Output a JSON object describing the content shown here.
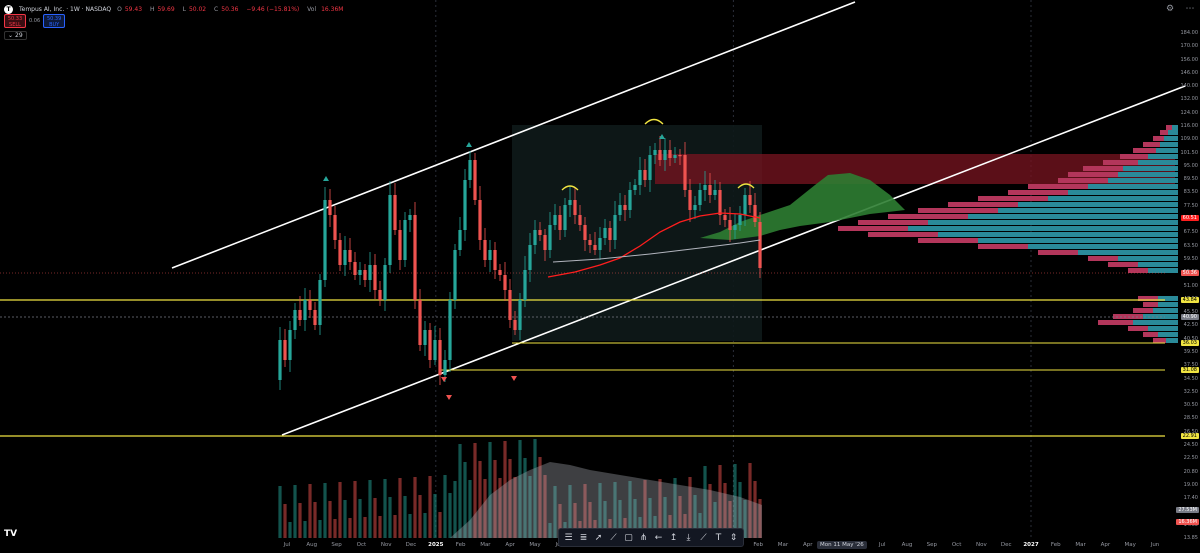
{
  "header": {
    "symbol": "Tempus AI, Inc. · 1W · NASDAQ",
    "ohlc": [
      {
        "label": "O",
        "value": "59.43",
        "color": "red"
      },
      {
        "label": "H",
        "value": "59.69",
        "color": "red"
      },
      {
        "label": "L",
        "value": "50.02",
        "color": "red"
      },
      {
        "label": "C",
        "value": "50.36",
        "color": "red"
      },
      {
        "label": "",
        "value": "−9.46 (−15.81%)",
        "color": "red"
      },
      {
        "label": "Vol",
        "value": "16.36M",
        "color": "red"
      }
    ],
    "sell_price": "50.33",
    "sell_label": "SELL",
    "spread": "0.06",
    "buy_price": "50.39",
    "buy_label": "BUY",
    "indicator_count": "29"
  },
  "colors": {
    "up": "#26a69a",
    "down": "#ef5350",
    "channel": "#ffffff",
    "hline": "#f0e442",
    "ma_red": "#ff1e1e",
    "ma_gray": "#b2b5be",
    "cloud": "#2e7d32",
    "vp_up": "#2a8a99",
    "vp_down": "#b3365b",
    "zone": "#7a1420"
  },
  "y_axis": {
    "labels": [
      "184.00",
      "170.00",
      "156.00",
      "146.00",
      "140.00",
      "132.00",
      "124.00",
      "116.00",
      "109.00",
      "101.50",
      "95.00",
      "89.50",
      "83.50",
      "77.50",
      "71.50",
      "67.50",
      "63.50",
      "59.50",
      "55.50",
      "51.00",
      "47.50",
      "45.50",
      "42.50",
      "40.50",
      "39.50",
      "37.50",
      "34.50",
      "32.50",
      "30.50",
      "28.50",
      "26.50",
      "24.50",
      "22.50",
      "20.80",
      "19.00",
      "17.40",
      "15.50",
      "14.65",
      "13.85"
    ],
    "tags": [
      {
        "value": "60.51",
        "bg": "#ff1e1e",
        "fg": "#fff"
      },
      {
        "value": "50.36",
        "bg": "#ef5350",
        "fg": "#fff"
      },
      {
        "value": "43.84",
        "bg": "#f0e442",
        "fg": "#000"
      },
      {
        "value": "40.90",
        "bg": "#787b86",
        "fg": "#fff"
      },
      {
        "value": "36.03",
        "bg": "#f0e442",
        "fg": "#000"
      },
      {
        "value": "31.08",
        "bg": "#f0e442",
        "fg": "#000"
      },
      {
        "value": "22.91",
        "bg": "#f0e442",
        "fg": "#000"
      },
      {
        "value": "27.53M",
        "bg": "#787b86",
        "fg": "#fff"
      },
      {
        "value": "16.36M",
        "bg": "#ef5350",
        "fg": "#fff"
      }
    ]
  },
  "x_axis": {
    "labels": [
      {
        "text": "Jul"
      },
      {
        "text": "Aug"
      },
      {
        "text": "Sep"
      },
      {
        "text": "Oct"
      },
      {
        "text": "Nov"
      },
      {
        "text": "Dec"
      },
      {
        "text": "2025",
        "bold": true
      },
      {
        "text": "Feb"
      },
      {
        "text": "Mar"
      },
      {
        "text": "Apr"
      },
      {
        "text": "May"
      },
      {
        "text": "Jun"
      },
      {
        "text": "Jul"
      },
      {
        "text": "Aug"
      },
      {
        "text": "Sep"
      },
      {
        "text": "Oct"
      },
      {
        "text": "Nov"
      },
      {
        "text": "Dec"
      },
      {
        "text": "2026",
        "bold": true
      },
      {
        "text": "Feb"
      },
      {
        "text": "Mar"
      },
      {
        "text": "Apr"
      },
      {
        "text": "May"
      },
      {
        "text": "Jun"
      },
      {
        "text": "Jul"
      },
      {
        "text": "Aug"
      },
      {
        "text": "Sep"
      },
      {
        "text": "Oct"
      },
      {
        "text": "Nov"
      },
      {
        "text": "Dec"
      },
      {
        "text": "2027",
        "bold": true
      },
      {
        "text": "Feb"
      },
      {
        "text": "Mar"
      },
      {
        "text": "Apr"
      },
      {
        "text": "May"
      },
      {
        "text": "Jun"
      }
    ],
    "cursor_label": "Mon 11 May '26"
  },
  "chart_data": {
    "type": "candlestick",
    "timeframe": "1W",
    "note_levels": [
      43.84,
      40.9,
      36.03,
      31.08,
      22.91
    ],
    "last_close": 50.36,
    "ma_value": 60.51,
    "volume_last": "16.36M",
    "volume_ma": "27.53M"
  },
  "toolbar": {
    "tools": [
      "hline-tool",
      "fib-tool",
      "cursor-tool",
      "trendline-tool",
      "rect-tool",
      "pitchfork-tool",
      "arrow-tool",
      "long-tool",
      "short-tool",
      "path-tool",
      "text-tool",
      "measure-tool"
    ]
  }
}
